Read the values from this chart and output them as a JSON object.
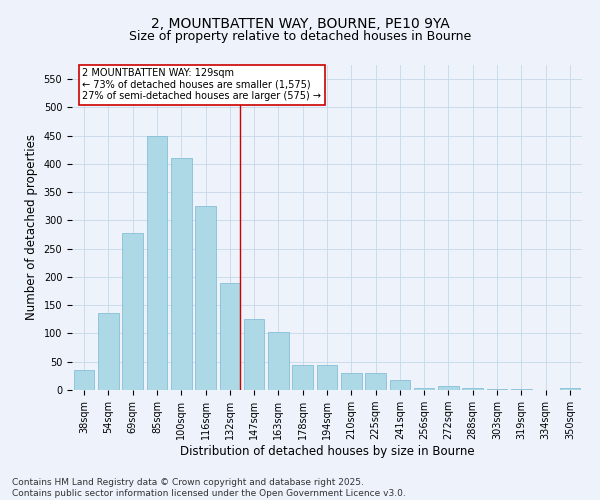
{
  "title_line1": "2, MOUNTBATTEN WAY, BOURNE, PE10 9YA",
  "title_line2": "Size of property relative to detached houses in Bourne",
  "categories": [
    "38sqm",
    "54sqm",
    "69sqm",
    "85sqm",
    "100sqm",
    "116sqm",
    "132sqm",
    "147sqm",
    "163sqm",
    "178sqm",
    "194sqm",
    "210sqm",
    "225sqm",
    "241sqm",
    "256sqm",
    "272sqm",
    "288sqm",
    "303sqm",
    "319sqm",
    "334sqm",
    "350sqm"
  ],
  "values": [
    35,
    137,
    277,
    450,
    410,
    325,
    190,
    125,
    102,
    45,
    45,
    30,
    30,
    18,
    3,
    7,
    3,
    2,
    1,
    0,
    3
  ],
  "bar_color": "#add8e6",
  "bar_edge_color": "#7ab8d4",
  "background_color": "#edf2fb",
  "ylabel": "Number of detached properties",
  "xlabel": "Distribution of detached houses by size in Bourne",
  "ylim": [
    0,
    575
  ],
  "yticks": [
    0,
    50,
    100,
    150,
    200,
    250,
    300,
    350,
    400,
    450,
    500,
    550
  ],
  "vline_index": 6,
  "vline_color": "#cc0000",
  "annotation_text": "2 MOUNTBATTEN WAY: 129sqm\n← 73% of detached houses are smaller (1,575)\n27% of semi-detached houses are larger (575) →",
  "annotation_box_color": "#ffffff",
  "annotation_box_edge": "#cc0000",
  "footer_line1": "Contains HM Land Registry data © Crown copyright and database right 2025.",
  "footer_line2": "Contains public sector information licensed under the Open Government Licence v3.0.",
  "grid_color": "#c5d8ea",
  "title_fontsize": 10,
  "subtitle_fontsize": 9,
  "axis_label_fontsize": 8.5,
  "tick_fontsize": 7,
  "annotation_fontsize": 7,
  "footer_fontsize": 6.5
}
